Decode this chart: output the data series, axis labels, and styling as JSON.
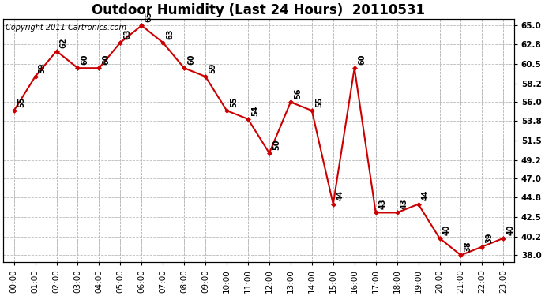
{
  "title": "Outdoor Humidity (Last 24 Hours)  20110531",
  "copyright_text": "Copyright 2011 Cartronics.com",
  "x_labels": [
    "00:00",
    "01:00",
    "02:00",
    "03:00",
    "04:00",
    "05:00",
    "06:00",
    "07:00",
    "08:00",
    "09:00",
    "10:00",
    "11:00",
    "12:00",
    "13:00",
    "14:00",
    "15:00",
    "16:00",
    "17:00",
    "18:00",
    "19:00",
    "20:00",
    "21:00",
    "22:00",
    "23:00"
  ],
  "y_values": [
    55,
    59,
    62,
    60,
    60,
    63,
    65,
    63,
    60,
    59,
    55,
    54,
    50,
    56,
    55,
    44,
    60,
    43,
    43,
    44,
    40,
    38,
    39,
    40
  ],
  "y_labels_right": [
    "38.0",
    "40.2",
    "42.5",
    "44.8",
    "47.0",
    "49.2",
    "51.5",
    "53.8",
    "56.0",
    "58.2",
    "60.5",
    "62.8",
    "65.0"
  ],
  "ylim_min": 37.2,
  "ylim_max": 65.8,
  "line_color": "#cc0000",
  "marker_color": "#cc0000",
  "background_color": "#ffffff",
  "grid_color": "#bbbbbb",
  "title_fontsize": 12,
  "copyright_fontsize": 7,
  "label_fontsize": 7,
  "tick_fontsize": 7.5
}
